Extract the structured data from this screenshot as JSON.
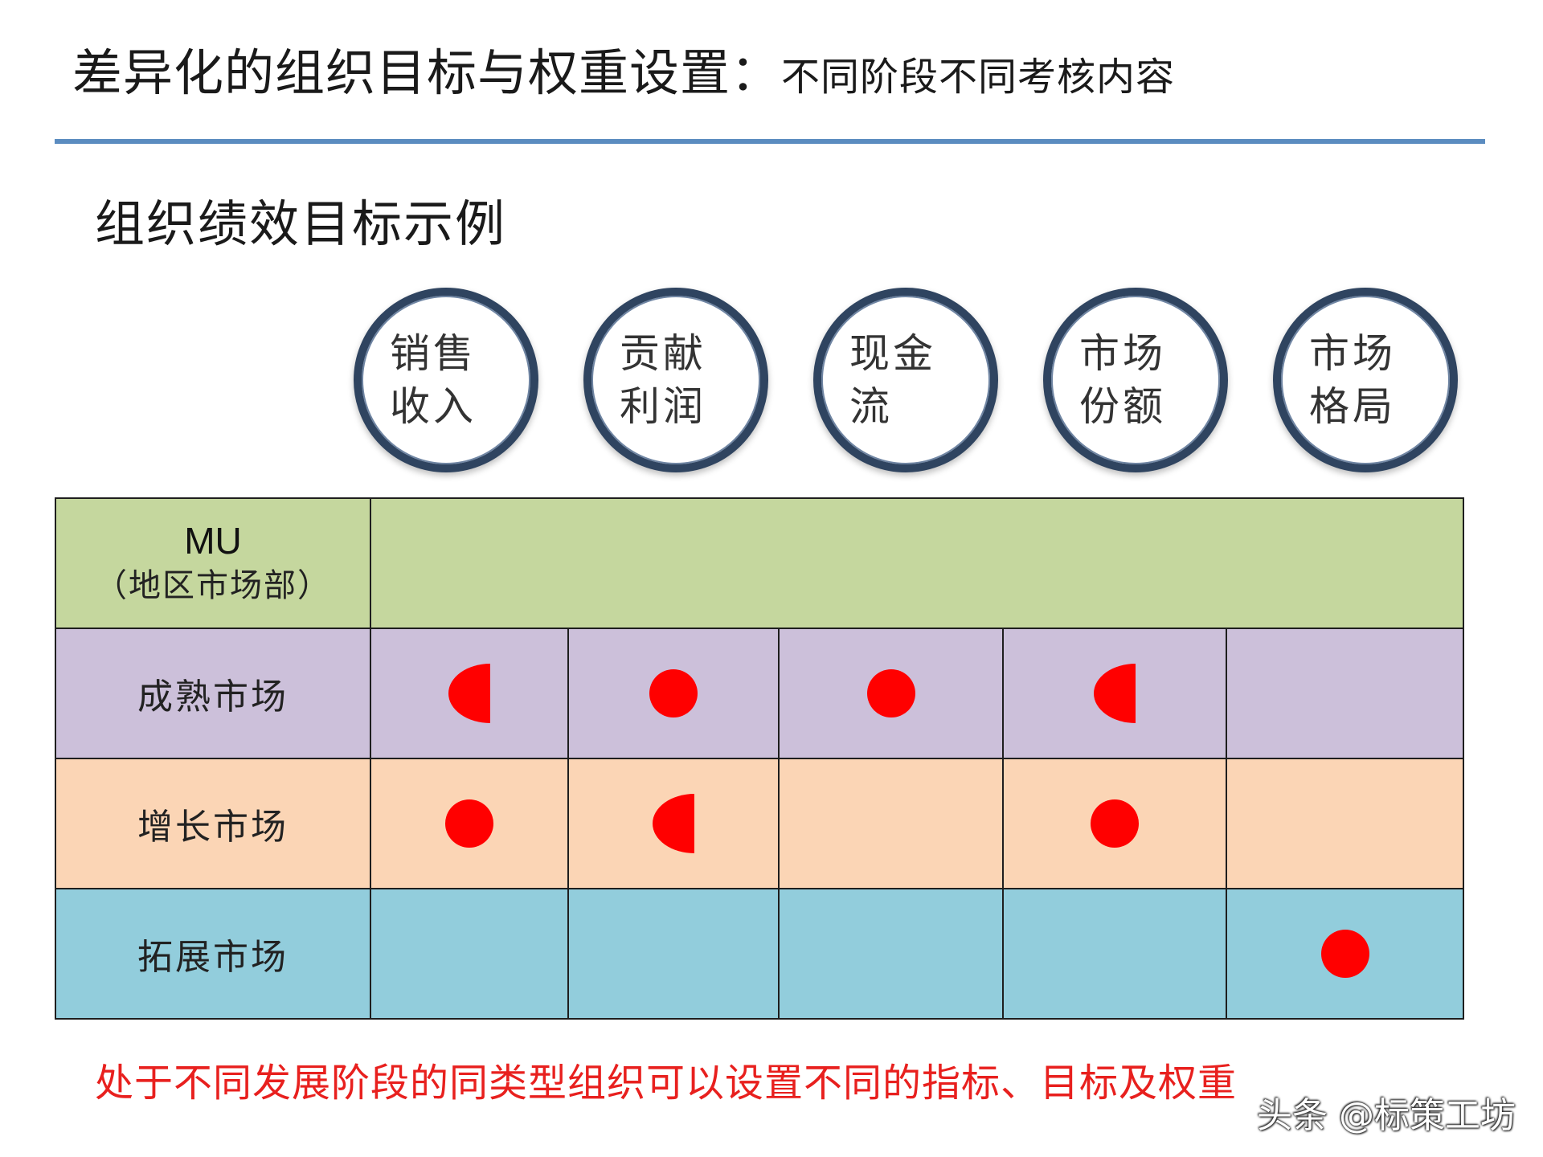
{
  "title": {
    "main": "差异化的组织目标与权重设置：",
    "sub": "不同阶段不同考核内容"
  },
  "section_heading": "组织绩效目标示例",
  "metrics": [
    {
      "line1": "销售",
      "line2": "收入"
    },
    {
      "line1": "贡献",
      "line2": "利润"
    },
    {
      "line1": "现金",
      "line2": "流"
    },
    {
      "line1": "市场",
      "line2": "份额"
    },
    {
      "line1": "市场",
      "line2": "格局"
    }
  ],
  "table": {
    "header": {
      "code": "MU",
      "name": "（地区市场部）"
    },
    "rows": [
      {
        "label": "成熟市场",
        "marks": [
          "half",
          "full",
          "full",
          "half",
          "none"
        ]
      },
      {
        "label": "增长市场",
        "marks": [
          "full",
          "half",
          "none",
          "full",
          "none"
        ]
      },
      {
        "label": "拓展市场",
        "marks": [
          "none",
          "none",
          "none",
          "none",
          "full"
        ]
      }
    ]
  },
  "footnote": "处于不同发展阶段的同类型组织可以设置不同的指标、目标及权重",
  "watermark": "头条 @标策工坊",
  "colors": {
    "title_rule": "#5b8cc0",
    "circle_ring": "#2f4460",
    "header_row": "#c5d79e",
    "mature_row": "#ccc0da",
    "growth_row": "#fbd5b5",
    "expand_row": "#92cddc",
    "mark": "#ff0000",
    "footnote": "#e8201e"
  }
}
